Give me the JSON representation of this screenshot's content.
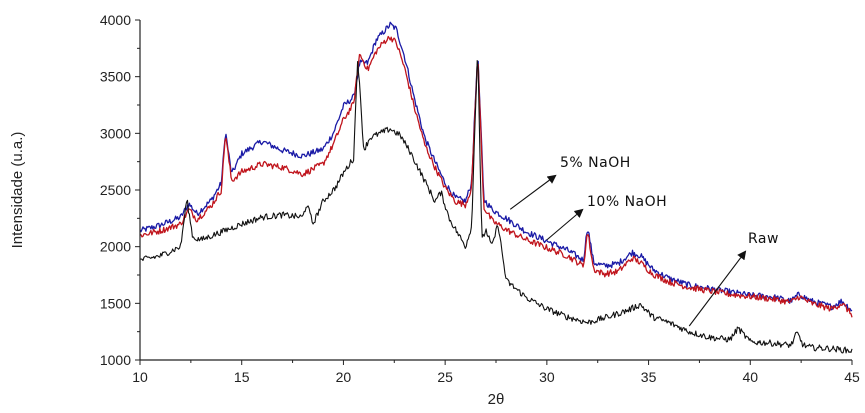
{
  "chart_data": {
    "type": "line",
    "title": "",
    "xlabel": "2θ",
    "ylabel": "Intensidade (u.a.)",
    "xlim": [
      10,
      45
    ],
    "ylim": [
      1000,
      4000
    ],
    "xticks": [
      10,
      15,
      20,
      25,
      30,
      35,
      40,
      45
    ],
    "yticks": [
      1000,
      1500,
      2000,
      2500,
      3000,
      3500,
      4000
    ],
    "grid": false,
    "legend": "none",
    "annotations": [
      {
        "text": "5% NaOH",
        "points_to": [
          28.2,
          2330
        ]
      },
      {
        "text": "10% NaOH",
        "points_to": [
          30.0,
          2060
        ]
      },
      {
        "text": "Raw",
        "points_to": [
          37.0,
          1300
        ]
      }
    ],
    "series": [
      {
        "color": "#1a1aa6",
        "x": [
          10,
          11,
          12,
          12.4,
          12.8,
          13.5,
          14.0,
          14.2,
          14.5,
          15,
          16,
          17,
          18,
          19,
          19.5,
          20,
          20.5,
          20.8,
          21.2,
          21.6,
          22,
          22.3,
          22.6,
          23,
          23.5,
          24,
          24.5,
          25,
          25.5,
          26,
          26.3,
          26.6,
          26.9,
          27.3,
          28,
          29,
          30,
          31,
          31.8,
          32.0,
          32.3,
          32.8,
          33.5,
          34.2,
          34.6,
          35.2,
          36,
          37,
          38,
          39,
          40,
          41,
          42,
          42.4,
          43,
          44,
          44.5,
          45
        ],
        "values": [
          2140,
          2190,
          2260,
          2380,
          2290,
          2410,
          2560,
          3020,
          2640,
          2820,
          2930,
          2850,
          2800,
          2860,
          3000,
          3240,
          3320,
          3620,
          3620,
          3820,
          3900,
          3960,
          3920,
          3680,
          3300,
          2960,
          2750,
          2560,
          2430,
          2400,
          2560,
          3720,
          2420,
          2330,
          2250,
          2130,
          2050,
          1970,
          1880,
          2180,
          1860,
          1830,
          1850,
          1950,
          1920,
          1800,
          1720,
          1660,
          1630,
          1600,
          1570,
          1560,
          1520,
          1580,
          1520,
          1470,
          1520,
          1440
        ]
      },
      {
        "color": "#c0141c",
        "x": [
          10,
          11,
          12,
          12.4,
          12.8,
          13.5,
          14.0,
          14.2,
          14.5,
          15,
          16,
          17,
          18,
          19,
          19.5,
          20,
          20.5,
          20.8,
          21.2,
          21.6,
          22,
          22.3,
          22.6,
          23,
          23.5,
          24,
          24.5,
          25,
          25.5,
          26,
          26.3,
          26.6,
          26.9,
          27.3,
          28,
          29,
          30,
          31,
          31.8,
          32.0,
          32.3,
          32.8,
          33.5,
          34.2,
          34.6,
          35.2,
          36,
          37,
          38,
          39,
          40,
          41,
          42,
          42.4,
          43,
          44,
          44.5,
          45
        ],
        "values": [
          2100,
          2140,
          2200,
          2330,
          2240,
          2360,
          2500,
          3000,
          2580,
          2660,
          2730,
          2700,
          2640,
          2730,
          2900,
          3120,
          3260,
          3700,
          3560,
          3720,
          3810,
          3850,
          3800,
          3580,
          3220,
          2900,
          2700,
          2520,
          2400,
          2370,
          2520,
          3700,
          2350,
          2230,
          2150,
          2060,
          1990,
          1920,
          1830,
          2140,
          1800,
          1760,
          1780,
          1900,
          1860,
          1760,
          1690,
          1640,
          1610,
          1580,
          1560,
          1540,
          1510,
          1560,
          1500,
          1450,
          1500,
          1400
        ]
      },
      {
        "color": "#111111",
        "x": [
          10,
          11,
          12,
          12.3,
          12.6,
          13,
          14,
          15,
          16,
          17,
          18,
          18.2,
          18.5,
          19,
          19.6,
          20,
          20.5,
          20.7,
          21.0,
          21.3,
          21.8,
          22.3,
          22.8,
          23.3,
          24,
          24.5,
          24.8,
          25.2,
          26,
          26.3,
          26.6,
          26.8,
          27.0,
          27.3,
          27.6,
          28,
          29,
          30,
          31,
          32,
          33,
          34,
          34.6,
          35.2,
          36,
          37,
          38,
          39,
          39.4,
          40,
          41,
          42,
          42.3,
          42.6,
          43,
          44,
          45
        ],
        "values": [
          1880,
          1920,
          2000,
          2420,
          2080,
          2060,
          2130,
          2200,
          2260,
          2280,
          2260,
          2380,
          2200,
          2400,
          2520,
          2650,
          2780,
          3680,
          2850,
          2960,
          3000,
          3040,
          2980,
          2830,
          2580,
          2400,
          2480,
          2250,
          2000,
          2180,
          3780,
          2050,
          2150,
          2000,
          2200,
          1700,
          1550,
          1450,
          1380,
          1330,
          1380,
          1440,
          1490,
          1380,
          1330,
          1250,
          1200,
          1180,
          1280,
          1160,
          1150,
          1130,
          1240,
          1130,
          1110,
          1100,
          1080
        ]
      }
    ]
  }
}
